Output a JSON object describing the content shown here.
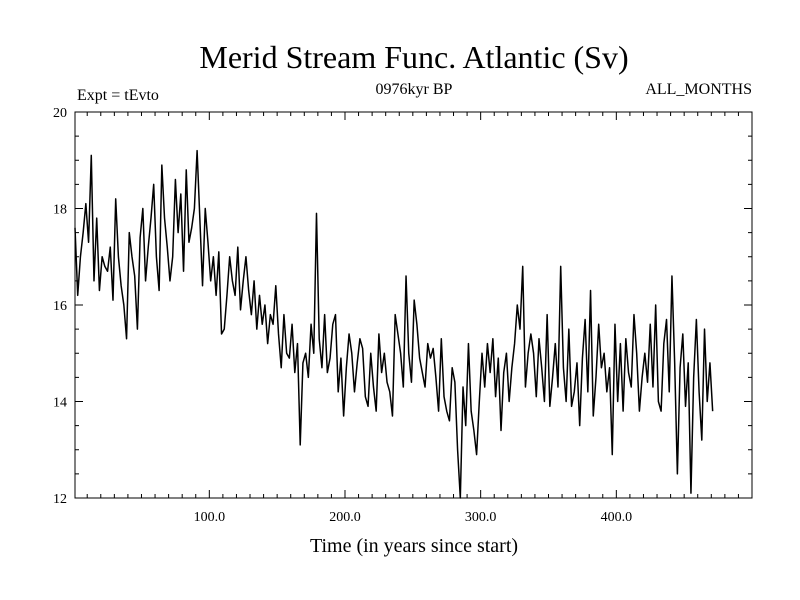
{
  "chart_data": {
    "type": "line",
    "title": "Merid Stream Func. Atlantic (Sv)",
    "subtitle_left": "Expt = tEvto",
    "subtitle_center": "0976kyr BP",
    "subtitle_right": "ALL_MONTHS",
    "xlabel": "Time (in years since start)",
    "ylabel": "",
    "xlim": [
      1,
      500
    ],
    "ylim": [
      12,
      20
    ],
    "x_ticks": [
      100,
      200,
      300,
      400
    ],
    "x_tick_labels": [
      "100.0",
      "200.0",
      "300.0",
      "400.0"
    ],
    "y_ticks": [
      12,
      14,
      16,
      18,
      20
    ],
    "y_tick_labels": [
      "12",
      "14",
      "16",
      "18",
      "20"
    ],
    "grid": false,
    "series": [
      {
        "name": "Merid Stream Func. Atlantic",
        "color": "#000000",
        "x_start": 1,
        "x_step": 2,
        "values": [
          17.6,
          16.2,
          17.0,
          17.5,
          18.1,
          17.3,
          19.1,
          16.5,
          17.8,
          16.3,
          17.0,
          16.8,
          16.7,
          17.2,
          16.1,
          18.2,
          17.0,
          16.4,
          16.0,
          15.3,
          17.5,
          17.0,
          16.6,
          15.5,
          17.4,
          18.0,
          16.5,
          17.2,
          17.8,
          18.5,
          17.0,
          16.3,
          18.9,
          17.8,
          17.2,
          16.5,
          17.0,
          18.6,
          17.5,
          18.3,
          16.7,
          18.8,
          17.3,
          17.6,
          18.0,
          19.2,
          17.8,
          16.4,
          18.0,
          17.3,
          16.5,
          17.0,
          16.2,
          17.1,
          15.4,
          15.5,
          16.2,
          17.0,
          16.5,
          16.2,
          17.2,
          15.9,
          16.5,
          17.0,
          16.3,
          15.8,
          16.5,
          15.5,
          16.2,
          15.6,
          16.0,
          15.2,
          15.8,
          15.6,
          16.4,
          15.4,
          14.7,
          15.8,
          15.0,
          14.9,
          15.6,
          14.6,
          15.2,
          13.1,
          14.8,
          15.0,
          14.5,
          15.6,
          15.0,
          17.9,
          15.3,
          14.7,
          15.8,
          14.6,
          14.9,
          15.6,
          15.8,
          14.2,
          14.9,
          13.7,
          14.7,
          15.4,
          15.0,
          14.2,
          14.8,
          15.3,
          15.1,
          14.1,
          13.9,
          15.0,
          14.3,
          13.8,
          15.4,
          14.6,
          15.0,
          14.4,
          14.2,
          13.7,
          15.8,
          15.4,
          15.0,
          14.3,
          16.6,
          15.0,
          14.4,
          16.1,
          15.6,
          14.9,
          14.6,
          14.3,
          15.2,
          14.9,
          15.1,
          14.5,
          13.8,
          15.3,
          14.1,
          13.8,
          13.6,
          14.7,
          14.4,
          13.0,
          12.0,
          14.3,
          13.5,
          15.2,
          13.8,
          13.4,
          12.9,
          14.0,
          15.0,
          14.3,
          15.2,
          14.6,
          15.3,
          14.1,
          14.9,
          13.4,
          14.6,
          15.0,
          14.0,
          14.7,
          15.2,
          16.0,
          15.5,
          16.8,
          14.3,
          15.0,
          15.4,
          15.0,
          14.1,
          15.3,
          14.7,
          14.0,
          15.8,
          13.9,
          14.5,
          15.2,
          14.3,
          16.8,
          14.7,
          14.0,
          15.5,
          13.9,
          14.2,
          14.8,
          13.5,
          14.9,
          15.7,
          14.2,
          16.3,
          13.7,
          14.5,
          15.6,
          14.7,
          15.0,
          14.2,
          14.7,
          12.9,
          15.6,
          14.0,
          15.2,
          13.8,
          15.3,
          14.6,
          14.3,
          15.8,
          15.0,
          13.8,
          14.5,
          15.0,
          14.4,
          15.6,
          14.3,
          16.0,
          14.0,
          13.8,
          15.2,
          15.7,
          14.2,
          16.6,
          14.8,
          12.5,
          14.7,
          15.4,
          13.9,
          14.8,
          12.1,
          14.5,
          15.7,
          14.2,
          13.2,
          15.5,
          14.0,
          14.8,
          13.8
        ]
      }
    ]
  }
}
